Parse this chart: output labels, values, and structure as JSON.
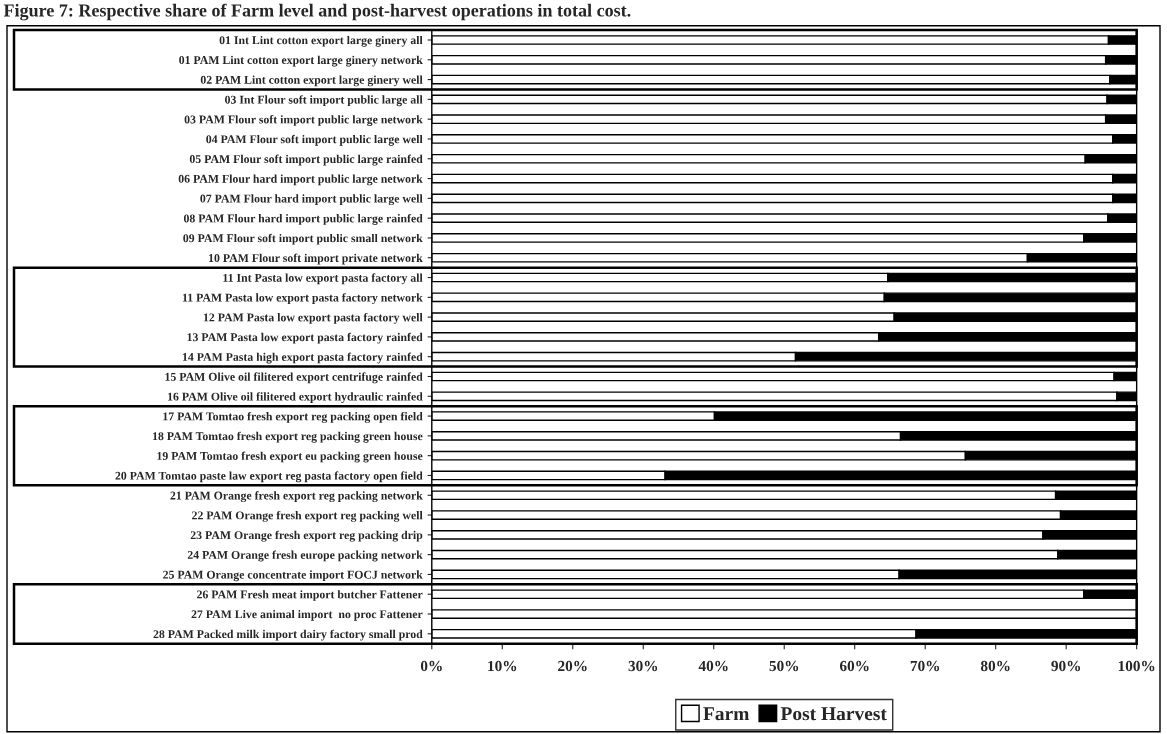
{
  "chart_data": {
    "type": "bar",
    "orientation": "horizontal",
    "stacked": true,
    "title": "Figure 7: Respective share of Farm level and post-harvest operations in total cost.",
    "categories": [
      "01 Int Lint cotton export large ginery all",
      "01 PAM Lint cotton export large ginery network",
      "02 PAM Lint cotton export large ginery well",
      "03 Int Flour soft import public large all",
      "03 PAM Flour soft import public large network",
      "04 PAM Flour soft import public large well",
      "05 PAM Flour soft import public large rainfed",
      "06 PAM Flour hard import public large network",
      "07 PAM Flour hard import public large well",
      "08 PAM Flour hard import public large rainfed",
      "09 PAM Flour soft import public small network",
      "10 PAM Flour soft import private network",
      "11 Int Pasta low export pasta factory all",
      "11 PAM Pasta low export pasta factory network",
      "12 PAM Pasta low export pasta factory well",
      "13 PAM Pasta low export pasta factory rainfed",
      "14 PAM Pasta high export pasta factory rainfed",
      "15 PAM Olive oil filitered export centrifuge rainfed",
      "16 PAM Olive oil filitered export hydraulic rainfed",
      "17 PAM Tomtao fresh export reg packing open field",
      "18 PAM Tomtao fresh export reg packing green house",
      "19 PAM Tomtao fresh export eu packing green house",
      "20 PAM Tomtao paste law export reg pasta factory open field",
      "21 PAM Orange fresh export reg packing network",
      "22 PAM Orange fresh export reg packing well",
      "23 PAM Orange fresh export reg packing drip",
      "24 PAM Orange fresh europe packing network",
      "25 PAM Orange concentrate import FOCJ network",
      "26 PAM Fresh meat import butcher Fattener",
      "27 PAM Live animal import  no proc Fattener",
      "28 PAM Packed milk import dairy factory small prod"
    ],
    "series": [
      {
        "name": "Farm",
        "color": "#ffffff",
        "values": [
          96.0,
          95.6,
          96.2,
          95.8,
          95.6,
          96.6,
          92.7,
          96.6,
          96.6,
          95.9,
          92.5,
          84.5,
          64.7,
          64.2,
          65.6,
          63.4,
          51.6,
          96.8,
          97.2,
          40.1,
          66.5,
          75.7,
          33.1,
          88.5,
          89.2,
          86.7,
          88.8,
          66.3,
          92.5,
          100,
          68.7
        ]
      },
      {
        "name": "Post Harvest",
        "color": "#000000",
        "values": [
          4.0,
          4.4,
          3.8,
          4.2,
          4.4,
          3.4,
          7.3,
          3.4,
          3.4,
          4.1,
          7.5,
          15.5,
          35.3,
          35.8,
          34.4,
          36.6,
          48.4,
          3.2,
          2.8,
          59.9,
          33.5,
          24.3,
          66.9,
          11.5,
          10.8,
          13.3,
          11.2,
          33.7,
          7.5,
          0,
          31.3
        ]
      }
    ],
    "xlim": [
      0,
      100
    ],
    "xticks": [
      {
        "value": 0,
        "label": "0%"
      },
      {
        "value": 10,
        "label": "10%"
      },
      {
        "value": 20,
        "label": "20%"
      },
      {
        "value": 30,
        "label": "30%"
      },
      {
        "value": 40,
        "label": "40%"
      },
      {
        "value": 50,
        "label": "50%"
      },
      {
        "value": 60,
        "label": "60%"
      },
      {
        "value": 70,
        "label": "70%"
      },
      {
        "value": 80,
        "label": "80%"
      },
      {
        "value": 90,
        "label": "90%"
      },
      {
        "value": 100,
        "label": "100%"
      }
    ],
    "grid": false,
    "legend": "bottom"
  }
}
